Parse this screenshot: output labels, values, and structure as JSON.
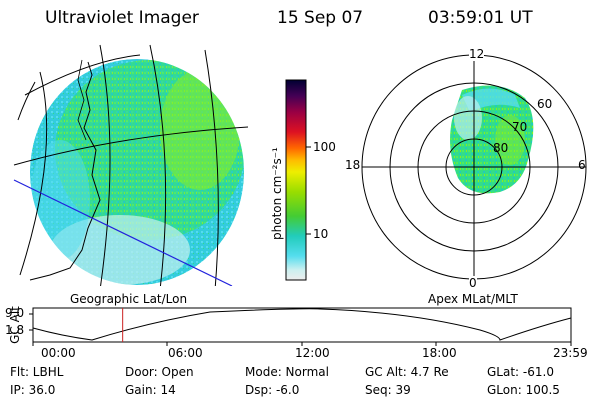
{
  "header": {
    "instrument": "Ultraviolet Imager",
    "date": "15 Sep 07",
    "time": "03:59:01 UT"
  },
  "colorbar": {
    "unit_label": "photon cm⁻²s⁻¹",
    "ticks": [
      "100",
      "10"
    ],
    "colors": [
      "#000033",
      "#330044",
      "#660055",
      "#99003d",
      "#cc0022",
      "#ee3300",
      "#ff7700",
      "#ffbb00",
      "#ffee00",
      "#ccee00",
      "#88dd00",
      "#55cc22",
      "#33cc77",
      "#22ccbb",
      "#55ddee",
      "#bbeeee",
      "#eeeeee"
    ]
  },
  "left_panel": {
    "caption": "Geographic Lat/Lon"
  },
  "polar_panel": {
    "caption": "Apex MLat/MLT",
    "mlt_labels": {
      "top": "12",
      "left": "18",
      "right": "6",
      "bottom": "0"
    },
    "lat_labels": [
      "60",
      "70",
      "80"
    ]
  },
  "altitude_plot": {
    "ylabel": "GC Alt",
    "y_ticks": [
      "9.0",
      "1.8"
    ],
    "x_ticks": [
      "00:00",
      "06:00",
      "12:00",
      "18:00",
      "23:59"
    ],
    "current_time_hours": 4.0
  },
  "info": {
    "flt": "Flt: LBHL",
    "ip": "IP: 36.0",
    "door": "Door: Open",
    "gain": "Gain: 14",
    "mode": "Mode: Normal",
    "dsp": "Dsp:    -6.0",
    "gc_alt": "GC Alt: 4.7 Re",
    "seq": "Seq: 39",
    "glat": "GLat: -61.0",
    "glon": "GLon: 100.5"
  }
}
